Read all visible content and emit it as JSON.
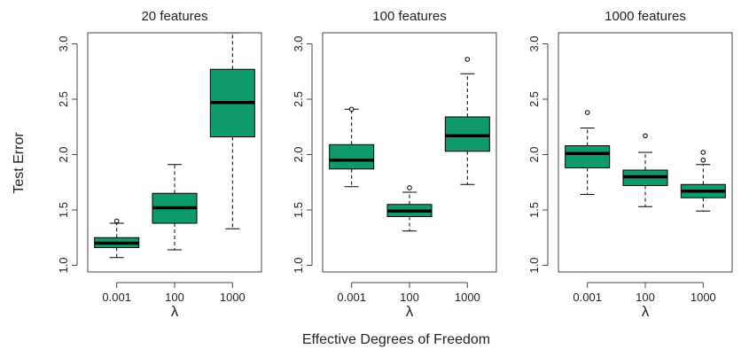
{
  "figure": {
    "ylabel": "Test Error",
    "xlabel": "Effective Degrees of Freedom"
  },
  "colors": {
    "box_fill": "#0f9a6e",
    "ink": "#000000",
    "axis": "#444444"
  },
  "chart_data": [
    {
      "type": "box",
      "title": "20 features",
      "xlabel": "λ",
      "categories": [
        "0.001",
        "100",
        "1000"
      ],
      "ylim": [
        1.0,
        3.0
      ],
      "yticks": [
        "1.0",
        "1.5",
        "2.0",
        "2.5",
        "3.0"
      ],
      "boxes": [
        {
          "whisker_low": 1.07,
          "q1": 1.16,
          "median": 1.2,
          "q3": 1.25,
          "whisker_high": 1.38,
          "outliers": [
            1.4
          ]
        },
        {
          "whisker_low": 1.14,
          "q1": 1.38,
          "median": 1.52,
          "q3": 1.65,
          "whisker_high": 1.91,
          "outliers": []
        },
        {
          "whisker_low": 1.33,
          "q1": 2.16,
          "median": 2.47,
          "q3": 2.77,
          "whisker_high": 3.1,
          "outliers": []
        }
      ]
    },
    {
      "type": "box",
      "title": "100 features",
      "xlabel": "λ",
      "categories": [
        "0.001",
        "100",
        "1000"
      ],
      "ylim": [
        1.0,
        3.0
      ],
      "yticks": [
        "1.0",
        "1.5",
        "2.0",
        "2.5",
        "3.0"
      ],
      "boxes": [
        {
          "whisker_low": 1.71,
          "q1": 1.87,
          "median": 1.95,
          "q3": 2.09,
          "whisker_high": 2.41,
          "outliers": [
            2.41
          ]
        },
        {
          "whisker_low": 1.31,
          "q1": 1.44,
          "median": 1.49,
          "q3": 1.55,
          "whisker_high": 1.66,
          "outliers": [
            1.7
          ]
        },
        {
          "whisker_low": 1.73,
          "q1": 2.03,
          "median": 2.17,
          "q3": 2.34,
          "whisker_high": 2.73,
          "outliers": [
            2.86
          ]
        }
      ]
    },
    {
      "type": "box",
      "title": "1000 features",
      "xlabel": "λ",
      "categories": [
        "0.001",
        "100",
        "1000"
      ],
      "ylim": [
        1.0,
        3.0
      ],
      "yticks": [
        "1.0",
        "1.5",
        "2.0",
        "2.5",
        "3.0"
      ],
      "boxes": [
        {
          "whisker_low": 1.64,
          "q1": 1.88,
          "median": 2.01,
          "q3": 2.08,
          "whisker_high": 2.24,
          "outliers": [
            2.38
          ]
        },
        {
          "whisker_low": 1.53,
          "q1": 1.72,
          "median": 1.8,
          "q3": 1.86,
          "whisker_high": 2.02,
          "outliers": [
            2.17
          ]
        },
        {
          "whisker_low": 1.49,
          "q1": 1.61,
          "median": 1.67,
          "q3": 1.73,
          "whisker_high": 1.91,
          "outliers": [
            1.95,
            2.02
          ]
        }
      ]
    }
  ]
}
